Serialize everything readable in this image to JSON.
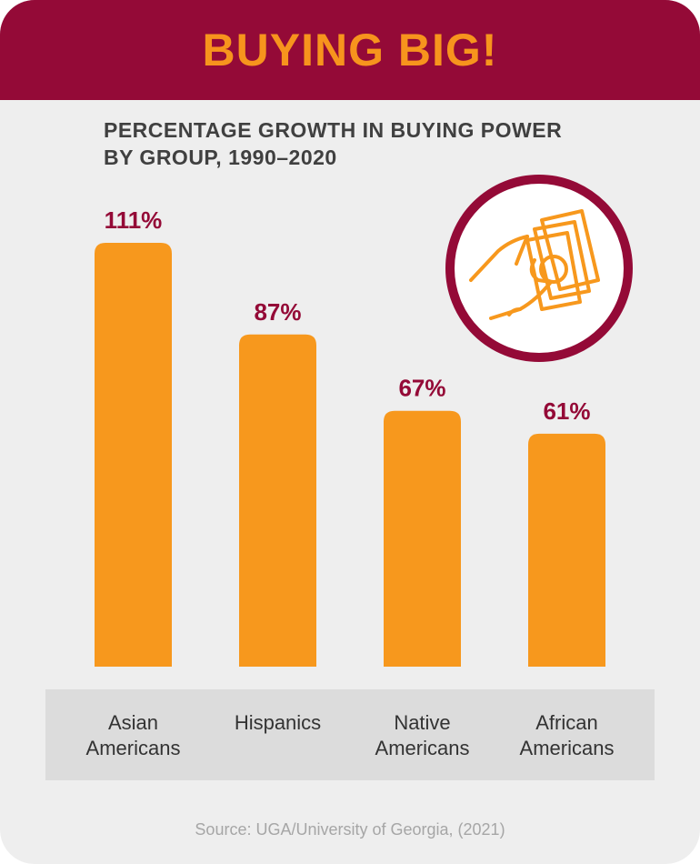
{
  "header": {
    "title": "BUYING BIG!"
  },
  "chart_data": {
    "type": "bar",
    "title_lines": [
      "PERCENTAGE GROWTH IN BUYING POWER",
      "BY GROUP, 1990–2020"
    ],
    "categories": [
      [
        "Asian",
        "Americans"
      ],
      [
        "Hispanics"
      ],
      [
        "Native",
        "Americans"
      ],
      [
        "African",
        "Americans"
      ]
    ],
    "values": [
      111,
      87,
      67,
      61
    ],
    "value_labels": [
      "111%",
      "87%",
      "67%",
      "61%"
    ],
    "ylim": [
      0,
      111
    ],
    "colors": {
      "bar": "#f7981d",
      "value_label": "#940a37",
      "category_band": "#dcdcdc"
    }
  },
  "source": "Source: UGA/University of Georgia, (2021)",
  "icon": {
    "name": "hand-holding-money-icon",
    "ring_color": "#940a37",
    "line_color": "#f7981d"
  }
}
